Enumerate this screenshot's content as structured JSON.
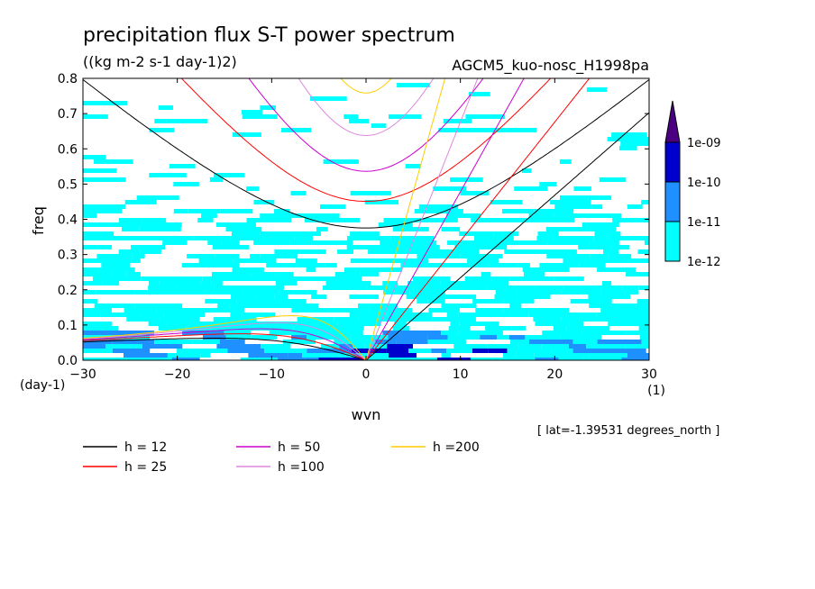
{
  "header": {
    "title": "precipitation flux S-T power spectrum",
    "units": "((kg m-2 s-1 day-1)2)",
    "run": "AGCM5_kuo-nosc_H1998pa"
  },
  "footer": {
    "lat": "[ lat=-1.39531 degrees_north ]"
  },
  "chart_data": {
    "type": "heatmap",
    "title": "precipitation flux S-T power spectrum",
    "xlabel": "wvn",
    "ylabel": "freq",
    "x_unit": "(1)",
    "y_unit": "(day-1)",
    "xlim": [
      -30,
      30
    ],
    "ylim": [
      0,
      0.8
    ],
    "xticks": [
      -30,
      -20,
      -10,
      0,
      10,
      20,
      30
    ],
    "yticks": [
      0.0,
      0.1,
      0.2,
      0.3,
      0.4,
      0.5,
      0.6,
      0.7,
      0.8
    ],
    "xtick_labels": [
      "−30",
      "−20",
      "−10",
      "0",
      "10",
      "20",
      "30"
    ],
    "ytick_labels": [
      "0.0",
      "0.1",
      "0.2",
      "0.3",
      "0.4",
      "0.5",
      "0.6",
      "0.7",
      "0.8"
    ],
    "colorbar": {
      "levels": [
        "1e-12",
        "1e-11",
        "1e-10",
        "1e-09"
      ],
      "colors": [
        "#00ffff",
        "#1e90ff",
        "#0000cd",
        "#4b0082"
      ]
    },
    "dispersion_curves": [
      {
        "name": "h = 12",
        "h": 12,
        "color": "#000000"
      },
      {
        "name": "h = 25",
        "h": 25,
        "color": "#ff0000"
      },
      {
        "name": "h = 50",
        "h": 50,
        "color": "#cc00cc"
      },
      {
        "name": "h =100",
        "h": 100,
        "color": "#dd88dd"
      },
      {
        "name": "h =200",
        "h": 200,
        "color": "#ffcc00"
      }
    ],
    "grid": false
  }
}
